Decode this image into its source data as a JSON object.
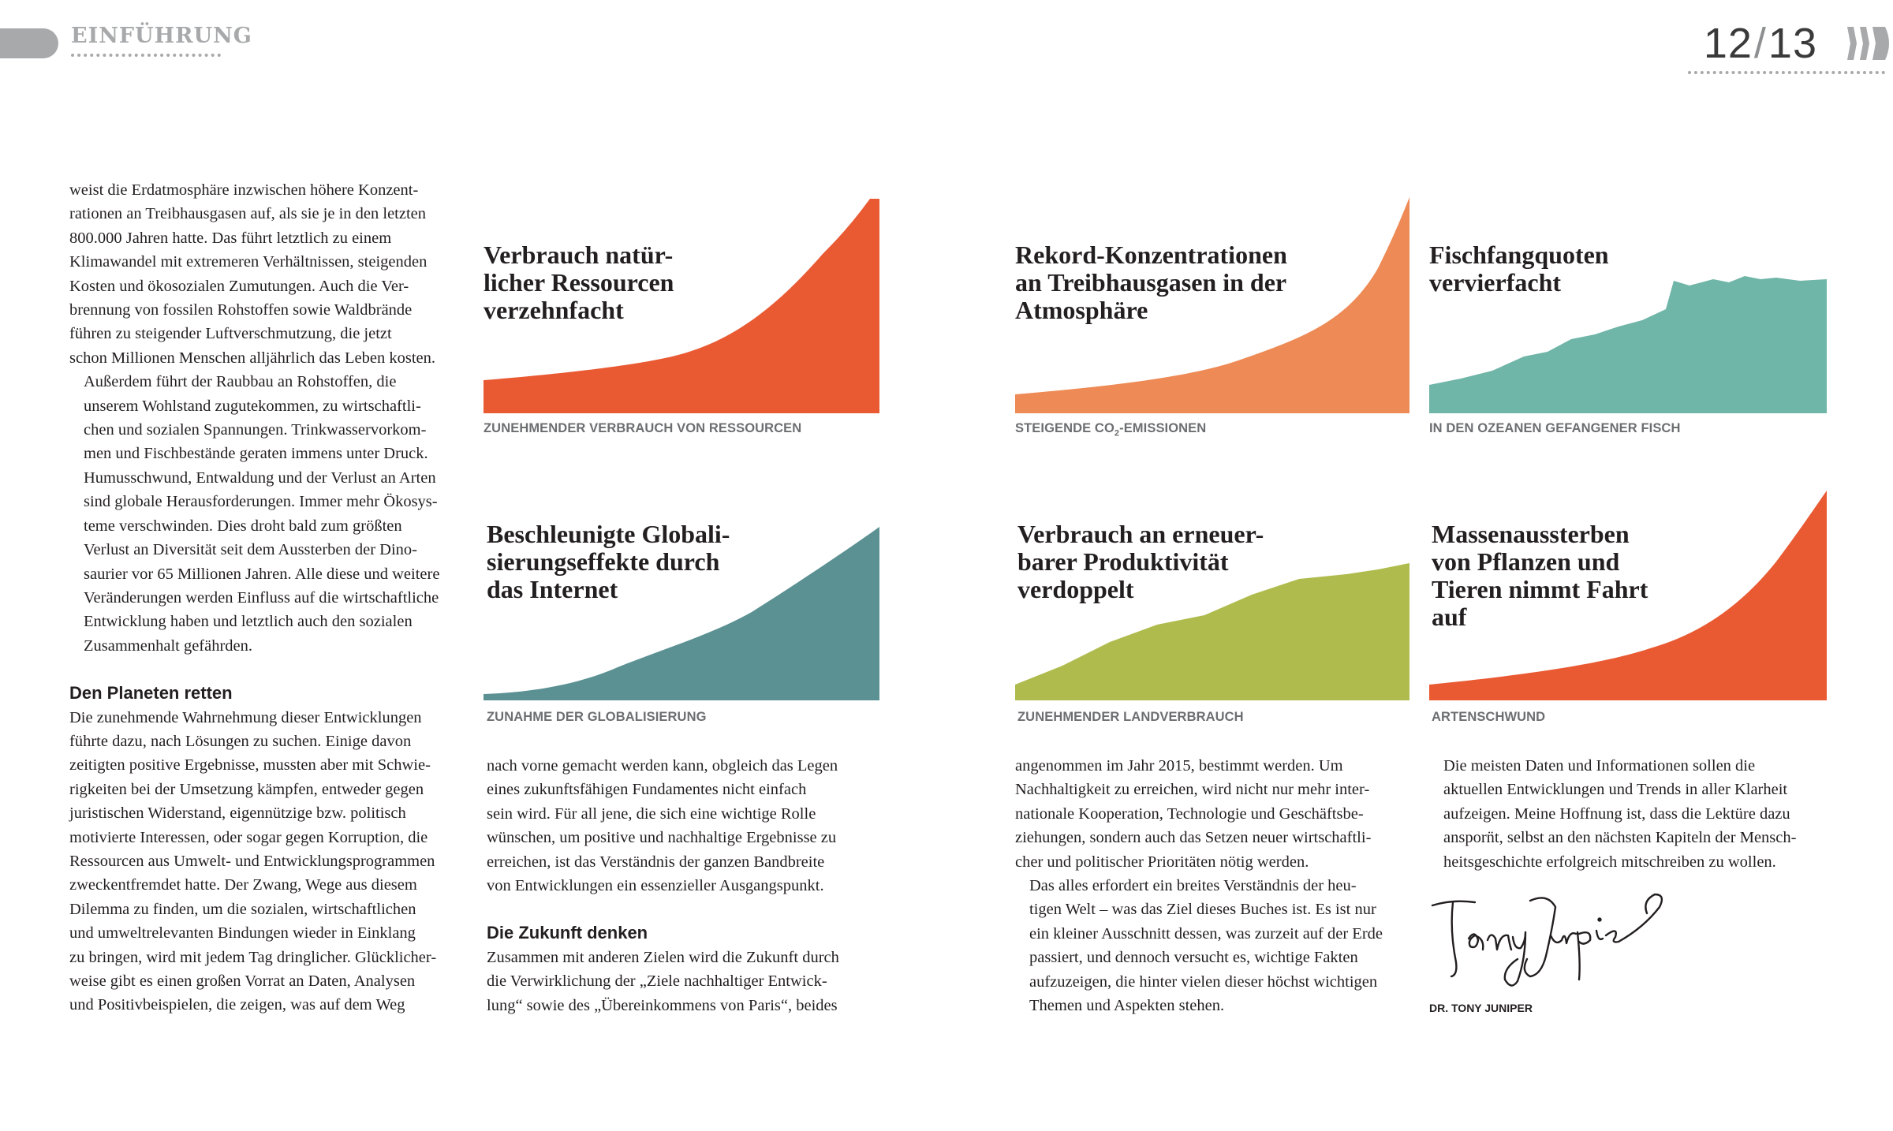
{
  "header": {
    "section": "EINFÜHRUNG",
    "page_left": "12",
    "page_sep": "/",
    "page_right": "13"
  },
  "col1": {
    "lines_a": [
      "weist die Erdatmosphäre inzwischen höhere Konzent-",
      "rationen an Treibhausgasen auf, als sie je in den letzten",
      "800.000 Jahren hatte. Das führt letztlich zu einem",
      "Klimawandel mit extremeren Verhältnissen, steigenden",
      "Kosten und ökosozialen Zumutungen. Auch die Ver-",
      "brennung von fossilen Rohstoffen sowie Waldbrände",
      "führen zu steigender Luftverschmutzung, die jetzt",
      "schon Millionen Menschen alljährlich das Leben kosten."
    ],
    "lines_b": [
      "Außerdem führt der Raubbau an Rohstoffen, die",
      "unserem Wohlstand zugutekommen, zu wirtschaftli-",
      "chen und sozialen Spannungen. Trinkwasservorkom-",
      "men und Fischbestände geraten immens unter Druck.",
      "Humusschwund, Entwaldung und der Verlust an Arten",
      "sind globale Herausforderungen. Immer mehr Ökosys-",
      "teme verschwinden. Dies droht bald zum größten",
      "Verlust an Diversität seit dem Aussterben der Dino-",
      "saurier vor 65 Millionen Jahren. Alle diese und weitere",
      "Veränderungen werden Einfluss auf die wirtschaftliche",
      "Entwicklung haben und letztlich auch den sozialen",
      "Zusammenhalt gefährden."
    ],
    "subhead": "Den Planeten retten",
    "lines_c": [
      "Die zunehmende Wahrnehmung dieser Entwicklungen",
      "führte dazu, nach Lösungen zu suchen. Einige davon",
      "zeitigten positive Ergebnisse, mussten aber mit Schwie-",
      "rigkeiten bei der Umsetzung kämpfen, entweder gegen",
      "juristischen Widerstand, eigennützige bzw. politisch",
      "motivierte Interessen, oder sogar gegen Korruption, die",
      "Ressourcen aus Umwelt- und Entwicklungsprogrammen",
      "zweckentfremdet hatte. Der Zwang, Wege aus diesem",
      "Dilemma zu finden, um die sozialen, wirtschaftlichen",
      "und umweltrelevanten Bindungen wieder in Einklang",
      "zu bringen, wird mit jedem Tag dringlicher. Glücklicher-",
      "weise gibt es einen großen Vorrat an Daten, Analysen",
      "und Positivbeispielen, die zeigen, was auf dem Weg"
    ]
  },
  "col2": {
    "lines_a": [
      "nach vorne gemacht werden kann, obgleich das Legen",
      "eines zukunftsfähigen Fundamentes nicht einfach",
      "sein wird. Für all jene, die sich eine wichtige Rolle",
      "wünschen, um positive und nachhaltige Ergebnisse zu",
      "erreichen, ist das Verständnis der ganzen Bandbreite",
      "von Entwicklungen ein essenzieller Ausgangspunkt."
    ],
    "subhead": "Die Zukunft denken",
    "lines_b": [
      "Zusammen mit anderen Zielen wird die Zukunft durch",
      "die Verwirklichung der „Ziele nachhaltiger Entwick-",
      "lung“ sowie des „Übereinkommens von Paris“, beides"
    ]
  },
  "col3": {
    "lines_a": [
      "angenommen im Jahr 2015, bestimmt werden. Um",
      "Nachhaltigkeit zu erreichen, wird nicht nur mehr inter-",
      "nationale Kooperation, Technologie und Geschäftsbe-",
      "ziehungen, sondern auch das Setzen neuer wirtschaftli-",
      "cher und politischer Prioritäten nötig werden."
    ],
    "lines_b": [
      "Das alles erfordert ein breites Verständnis der heu-",
      "tigen Welt – was das Ziel dieses Buches ist. Es ist nur",
      "ein kleiner Ausschnitt dessen, was zurzeit auf der Erde",
      "passiert, und dennoch versucht es, wichtige Fakten",
      "aufzuzeigen, die hinter vielen dieser höchst wichtigen",
      "Themen und Aspekten stehen."
    ]
  },
  "col4": {
    "lines_a": [
      "Die meisten Daten und Informationen sollen die",
      "aktuellen Entwicklungen und Trends in aller Klarheit",
      "aufzeigen. Meine Hoffnung ist, dass die Lektüre dazu",
      "ansporn̈t, selbst an den nächsten Kapiteln der Mensch-",
      "heitsgeschichte erfolgreich mitschreiben zu wollen."
    ],
    "signature_name": "DR. TONY JUNIPER"
  },
  "infographics": [
    {
      "title_lines": [
        "Verbrauch natür-",
        "licher Ressourcen",
        "verzehnfacht"
      ],
      "caption": "ZUNEHMENDER VERBRAUCH VON RESSOURCEN",
      "color": "#e95a33"
    },
    {
      "title_lines": [
        "Rekord-Konzentrationen",
        "an Treibhausgasen in der",
        "Atmosphäre"
      ],
      "caption_pre": "STEIGENDE CO",
      "caption_sub": "2",
      "caption_post": "-EMISSIONEN",
      "color": "#ee8a55"
    },
    {
      "title_lines": [
        "Fischfangquoten",
        "vervierfacht"
      ],
      "caption": "IN DEN OZEANEN GEFANGENER FISCH",
      "color": "#6fb5a8"
    },
    {
      "title_lines": [
        "Beschleunigte Globali-",
        "sierungseffekte durch",
        "das Internet"
      ],
      "caption": "ZUNAHME DER GLOBALISIERUNG",
      "color": "#5b9193"
    },
    {
      "title_lines": [
        "Verbrauch an erneuer-",
        "barer Produktivität",
        "verdoppelt"
      ],
      "caption": "ZUNEHMENDER LANDVERBRAUCH",
      "color": "#afbc4d"
    },
    {
      "title_lines": [
        "Massenaussterben",
        "von Pflanzen und",
        "Tieren nimmt Fahrt",
        "auf"
      ],
      "caption": "ARTENSCHWUND",
      "color": "#e95a33"
    }
  ]
}
